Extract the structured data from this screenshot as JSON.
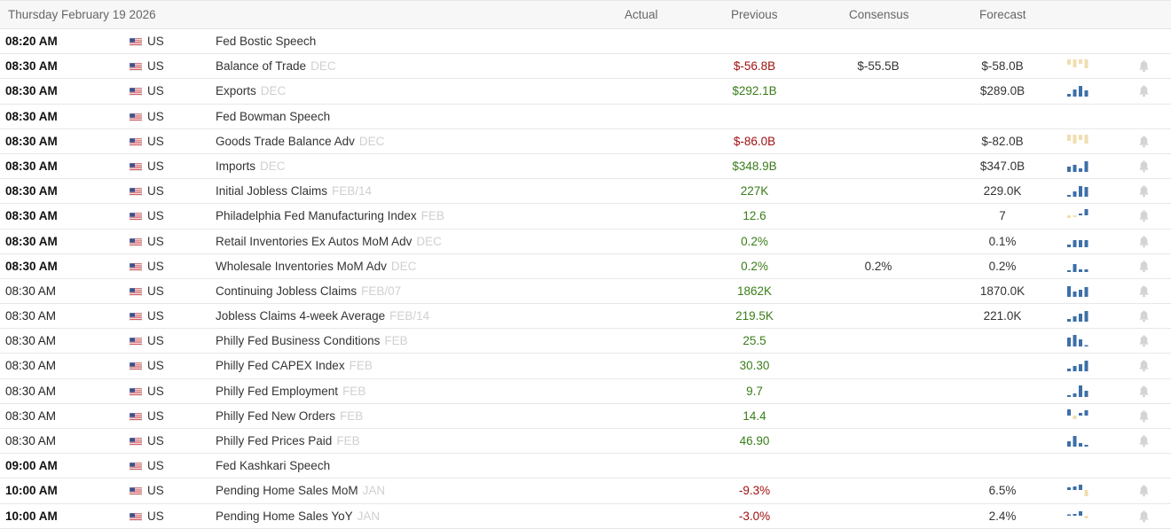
{
  "header": {
    "date": "Thursday February 19 2026",
    "col_actual": "Actual",
    "col_previous": "Previous",
    "col_consensus": "Consensus",
    "col_forecast": "Forecast"
  },
  "colors": {
    "positive": "#3a7d1a",
    "negative": "#a01010",
    "spark_up": "#3d6fa8",
    "spark_down": "#f0deb0",
    "bell": "#d4d4d4"
  },
  "rows": [
    {
      "time": "08:20 AM",
      "bold": true,
      "country": "US",
      "event": "Fed Bostic Speech",
      "ref": "",
      "previous": "",
      "prev_sign": "",
      "consensus": "",
      "forecast": "",
      "spark": [],
      "bell": false
    },
    {
      "time": "08:30 AM",
      "bold": true,
      "country": "US",
      "event": "Balance of Trade",
      "ref": "DEC",
      "previous": "$-56.8B",
      "prev_sign": "neg",
      "consensus": "$-55.5B",
      "forecast": "$-58.0B",
      "spark": [
        -6,
        -9,
        -5,
        -10
      ],
      "bell": true
    },
    {
      "time": "08:30 AM",
      "bold": true,
      "country": "US",
      "event": "Exports",
      "ref": "DEC",
      "previous": "$292.1B",
      "prev_sign": "pos",
      "consensus": "",
      "forecast": "$289.0B",
      "spark": [
        3,
        8,
        12,
        7
      ],
      "bell": true
    },
    {
      "time": "08:30 AM",
      "bold": true,
      "country": "US",
      "event": "Fed Bowman Speech",
      "ref": "",
      "previous": "",
      "prev_sign": "",
      "consensus": "",
      "forecast": "",
      "spark": [],
      "bell": false
    },
    {
      "time": "08:30 AM",
      "bold": true,
      "country": "US",
      "event": "Goods Trade Balance Adv",
      "ref": "DEC",
      "previous": "$-86.0B",
      "prev_sign": "neg",
      "consensus": "",
      "forecast": "$-82.0B",
      "spark": [
        -7,
        -10,
        -6,
        -10
      ],
      "bell": true
    },
    {
      "time": "08:30 AM",
      "bold": true,
      "country": "US",
      "event": "Imports",
      "ref": "DEC",
      "previous": "$348.9B",
      "prev_sign": "pos",
      "consensus": "",
      "forecast": "$347.0B",
      "spark": [
        6,
        8,
        4,
        12
      ],
      "bell": true
    },
    {
      "time": "08:30 AM",
      "bold": true,
      "country": "US",
      "event": "Initial Jobless Claims",
      "ref": "FEB/14",
      "previous": "227K",
      "prev_sign": "pos",
      "consensus": "",
      "forecast": "229.0K",
      "spark": [
        2,
        6,
        12,
        11
      ],
      "bell": true
    },
    {
      "time": "08:30 AM",
      "bold": true,
      "country": "US",
      "event": "Philadelphia Fed Manufacturing Index",
      "ref": "FEB",
      "previous": "12.6",
      "prev_sign": "pos",
      "consensus": "",
      "forecast": "7",
      "spark": [
        -3,
        -2,
        2,
        7
      ],
      "bell": true
    },
    {
      "time": "08:30 AM",
      "bold": true,
      "country": "US",
      "event": "Retail Inventories Ex Autos MoM Adv",
      "ref": "DEC",
      "previous": "0.2%",
      "prev_sign": "pos",
      "consensus": "",
      "forecast": "0.1%",
      "spark": [
        3,
        8,
        8,
        8
      ],
      "bell": true
    },
    {
      "time": "08:30 AM",
      "bold": true,
      "country": "US",
      "event": "Wholesale Inventories MoM Adv",
      "ref": "DEC",
      "previous": "0.2%",
      "prev_sign": "pos",
      "consensus": "0.2%",
      "forecast": "0.2%",
      "spark": [
        2,
        9,
        3,
        3
      ],
      "bell": true
    },
    {
      "time": "08:30 AM",
      "bold": false,
      "country": "US",
      "event": "Continuing Jobless Claims",
      "ref": "FEB/07",
      "previous": "1862K",
      "prev_sign": "pos",
      "consensus": "",
      "forecast": "1870.0K",
      "spark": [
        12,
        6,
        8,
        11
      ],
      "bell": true
    },
    {
      "time": "08:30 AM",
      "bold": false,
      "country": "US",
      "event": "Jobless Claims 4-week Average",
      "ref": "FEB/14",
      "previous": "219.5K",
      "prev_sign": "pos",
      "consensus": "",
      "forecast": "221.0K",
      "spark": [
        3,
        6,
        9,
        12
      ],
      "bell": true
    },
    {
      "time": "08:30 AM",
      "bold": false,
      "country": "US",
      "event": "Philly Fed Business Conditions",
      "ref": "FEB",
      "previous": "25.5",
      "prev_sign": "pos",
      "consensus": "",
      "forecast": "",
      "spark": [
        10,
        13,
        8,
        1
      ],
      "bell": true
    },
    {
      "time": "08:30 AM",
      "bold": false,
      "country": "US",
      "event": "Philly Fed CAPEX Index",
      "ref": "FEB",
      "previous": "30.30",
      "prev_sign": "pos",
      "consensus": "",
      "forecast": "",
      "spark": [
        3,
        6,
        8,
        12
      ],
      "bell": true
    },
    {
      "time": "08:30 AM",
      "bold": false,
      "country": "US",
      "event": "Philly Fed Employment",
      "ref": "FEB",
      "previous": "9.7",
      "prev_sign": "pos",
      "consensus": "",
      "forecast": "",
      "spark": [
        2,
        4,
        13,
        7
      ],
      "bell": true
    },
    {
      "time": "08:30 AM",
      "bold": false,
      "country": "US",
      "event": "Philly Fed New Orders",
      "ref": "FEB",
      "previous": "14.4",
      "prev_sign": "pos",
      "consensus": "",
      "forecast": "",
      "spark": [
        9,
        -4,
        3,
        6
      ],
      "bell": true
    },
    {
      "time": "08:30 AM",
      "bold": false,
      "country": "US",
      "event": "Philly Fed Prices Paid",
      "ref": "FEB",
      "previous": "46.90",
      "prev_sign": "pos",
      "consensus": "",
      "forecast": "",
      "spark": [
        6,
        12,
        4,
        2
      ],
      "bell": true
    },
    {
      "time": "09:00 AM",
      "bold": true,
      "country": "US",
      "event": "Fed Kashkari Speech",
      "ref": "",
      "previous": "",
      "prev_sign": "",
      "consensus": "",
      "forecast": "",
      "spark": [],
      "bell": false
    },
    {
      "time": "10:00 AM",
      "bold": true,
      "country": "US",
      "event": "Pending Home Sales MoM",
      "ref": "JAN",
      "previous": "-9.3%",
      "prev_sign": "neg",
      "consensus": "",
      "forecast": "6.5%",
      "spark": [
        3,
        4,
        6,
        -10
      ],
      "bell": true
    },
    {
      "time": "10:00 AM",
      "bold": true,
      "country": "US",
      "event": "Pending Home Sales YoY",
      "ref": "JAN",
      "previous": "-3.0%",
      "prev_sign": "neg",
      "consensus": "",
      "forecast": "2.4%",
      "spark": [
        1,
        2,
        5,
        -3
      ],
      "bell": true
    }
  ]
}
